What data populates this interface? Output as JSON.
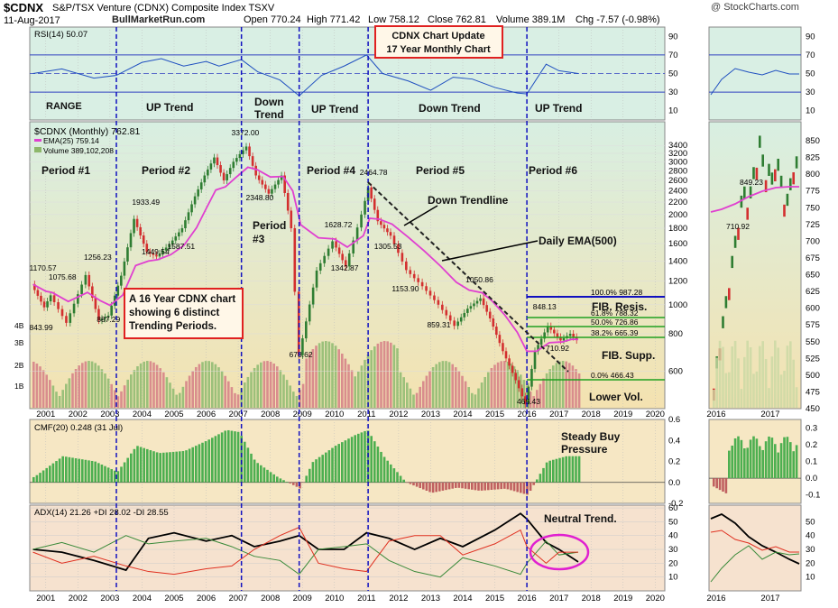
{
  "header": {
    "symbol": "$CDNX",
    "name": "S&P/TSX Venture (CDNX) Composite Index  TSXV",
    "date": "11-Aug-2017",
    "site": "BullMarketRun.com",
    "open": "Open 770.24",
    "high": "High 771.42",
    "low": "Low 758.12",
    "close": "Close 762.81",
    "volume": "Volume 389.1M",
    "chg": "Chg -7.57 (-0.98%)",
    "watermark": "@ StockCharts.com"
  },
  "callouts": {
    "top_box": [
      "CDNX Chart Update",
      "17 Year Monthly Chart"
    ],
    "mid_box": [
      "A 16 Year CDNX chart",
      "showing 6 distinct",
      "Trending Periods."
    ]
  },
  "annotations": {
    "range": "RANGE",
    "trends": [
      "UP Trend",
      "Down",
      "Trend",
      "UP Trend",
      "Down Trend",
      "UP Trend"
    ],
    "periods": [
      "Period #1",
      "Period #2",
      "Period",
      "#3",
      "Period #4",
      "Period #5",
      "Period #6"
    ],
    "down_trendline": "Down Trendline",
    "daily_ema": "Daily EMA(500)",
    "fib_resis": "FIB. Resis.",
    "fib_supp": "FIB. Supp.",
    "lower_vol": "Lower Vol.",
    "steady_buy": [
      "Steady Buy",
      "Pressure"
    ],
    "neutral": "Neutral Trend."
  },
  "colors": {
    "price_up": "#2e7d32",
    "price_down": "#d32f2f",
    "ema": "#e040d0",
    "indicator_bg": "#f6e7c4",
    "rsi_bg": "#dff0e6",
    "trend_line": "#1010c0",
    "callout": "#e02020"
  },
  "chart_data": [
    {
      "type": "line",
      "panel": "RSI",
      "title": "RSI(14) 50.07",
      "ylim": [
        0,
        100
      ],
      "ticks": [
        "90",
        "70",
        "50",
        "30",
        "10"
      ],
      "x": [
        2000.6,
        2001.5,
        2002.5,
        2003.2,
        2004.0,
        2004.6,
        2005.3,
        2006.0,
        2006.4,
        2007.1,
        2007.6,
        2008.3,
        2008.9,
        2009.6,
        2010.3,
        2011.0,
        2011.5,
        2012.3,
        2013.0,
        2013.7,
        2014.3,
        2015.0,
        2015.7,
        2016.0,
        2016.6,
        2017.0,
        2017.6
      ],
      "values": [
        50,
        55,
        45,
        48,
        62,
        66,
        58,
        63,
        58,
        65,
        52,
        43,
        26,
        48,
        58,
        70,
        50,
        42,
        32,
        46,
        44,
        35,
        29,
        28,
        60,
        53,
        50
      ]
    },
    {
      "type": "line",
      "panel": "price",
      "title": "$CDNX (Monthly) 762.81",
      "scale": "log",
      "legend": [
        "EMA(25) 759.14",
        "Volume 389,102,208"
      ],
      "ylim": [
        450,
        3600
      ],
      "ticks": [
        "3400",
        "3200",
        "3000",
        "2800",
        "2600",
        "2400",
        "2200",
        "2000",
        "1800",
        "1600",
        "1400",
        "1200",
        "1000",
        "800",
        "600"
      ],
      "vol_ticks": [
        "4B",
        "3B",
        "2B",
        "1B"
      ],
      "fib_levels": [
        {
          "label": "100.0% 987.28",
          "value": 987.28
        },
        {
          "label": "61.8% 788.32",
          "value": 788.32
        },
        {
          "label": "50.0% 726.86",
          "value": 726.86
        },
        {
          "label": "38.2% 665.39",
          "value": 665.39
        },
        {
          "label": "0.0% 466.43",
          "value": 466.43
        }
      ],
      "x": [
        2000.6,
        2001.0,
        2001.2,
        2001.7,
        2002.3,
        2002.7,
        2003.0,
        2003.4,
        2003.8,
        2004.2,
        2004.5,
        2004.9,
        2005.3,
        2005.7,
        2006.0,
        2006.3,
        2006.6,
        2006.9,
        2007.3,
        2007.6,
        2008.0,
        2008.4,
        2008.7,
        2008.95,
        2009.5,
        2010.0,
        2010.4,
        2010.9,
        2011.1,
        2011.4,
        2011.8,
        2012.3,
        2012.8,
        2013.3,
        2013.8,
        2014.2,
        2014.6,
        2014.9,
        2015.3,
        2015.7,
        2016.0,
        2016.3,
        2016.7,
        2017.1,
        2017.4,
        2017.6
      ],
      "values": [
        1170,
        980,
        1075,
        870,
        1256,
        887,
        920,
        1250,
        1933,
        1500,
        1449,
        1587,
        1800,
        2300,
        2700,
        3100,
        2600,
        3000,
        3372,
        2700,
        2348,
        2700,
        1800,
        678,
        1300,
        1628,
        1342,
        2000,
        2464,
        1900,
        1700,
        1305,
        1153,
        1000,
        850,
        970,
        1050,
        900,
        700,
        560,
        465,
        700,
        848,
        760,
        800,
        762
      ]
    },
    {
      "type": "bar",
      "panel": "CMF",
      "title": "CMF(20) 0.248 (31 Jul)",
      "ylim": [
        -0.2,
        0.6
      ],
      "ticks": [
        "0.6",
        "0.4",
        "0.2",
        "0.0",
        "-0.2"
      ],
      "x": [
        2000.6,
        2001.5,
        2002.5,
        2003.2,
        2003.8,
        2004.5,
        2005.3,
        2006.0,
        2006.6,
        2007.0,
        2007.5,
        2008.2,
        2008.9,
        2009.3,
        2010.0,
        2010.6,
        2011.0,
        2011.5,
        2012.2,
        2013.0,
        2013.8,
        2014.5,
        2015.3,
        2016.0,
        2016.6,
        2017.2,
        2017.6
      ],
      "values": [
        0.05,
        0.25,
        0.2,
        0.1,
        0.35,
        0.28,
        0.3,
        0.4,
        0.5,
        0.48,
        0.2,
        0.05,
        -0.06,
        0.2,
        0.35,
        0.45,
        0.5,
        0.25,
        0.0,
        -0.1,
        -0.05,
        -0.08,
        -0.06,
        -0.12,
        0.2,
        0.25,
        0.25
      ]
    },
    {
      "type": "line",
      "panel": "ADX",
      "title": "ADX(14) 21.26 +DI 28.02 -DI 28.55",
      "ylim": [
        0,
        60
      ],
      "ticks": [
        "60",
        "50",
        "40",
        "30",
        "20",
        "10"
      ],
      "x": [
        2000.6,
        2001.5,
        2002.5,
        2003.5,
        2004.2,
        2005.0,
        2006.0,
        2006.8,
        2007.5,
        2008.3,
        2008.9,
        2009.5,
        2010.3,
        2011.0,
        2011.7,
        2012.5,
        2013.3,
        2014.0,
        2015.0,
        2015.8,
        2016.0,
        2016.6,
        2017.0,
        2017.6
      ],
      "series": [
        {
          "name": "ADX(14)",
          "values": [
            30,
            28,
            22,
            15,
            38,
            42,
            36,
            40,
            32,
            36,
            40,
            30,
            30,
            42,
            38,
            30,
            38,
            32,
            44,
            56,
            52,
            35,
            30,
            21
          ]
        },
        {
          "name": "+DI",
          "values": [
            30,
            35,
            28,
            40,
            34,
            36,
            38,
            32,
            25,
            22,
            12,
            30,
            32,
            34,
            22,
            14,
            10,
            24,
            18,
            12,
            20,
            36,
            26,
            28
          ]
        },
        {
          "name": "-DI",
          "values": [
            28,
            20,
            25,
            18,
            14,
            12,
            16,
            18,
            30,
            40,
            46,
            20,
            16,
            14,
            36,
            40,
            40,
            26,
            34,
            44,
            32,
            20,
            28,
            28
          ]
        }
      ]
    }
  ],
  "xaxis": {
    "years": [
      "2001",
      "2002",
      "2003",
      "2004",
      "2005",
      "2006",
      "2007",
      "2008",
      "2009",
      "2010",
      "2011",
      "2012",
      "2013",
      "2014",
      "2015",
      "2016",
      "2017",
      "2018",
      "2019",
      "2020"
    ],
    "right_years": [
      "2016",
      "2017"
    ]
  },
  "right_panel": {
    "rsi_ticks": [
      "90",
      "70",
      "50",
      "30",
      "10"
    ],
    "price_ticks": [
      "850",
      "825",
      "800",
      "775",
      "750",
      "725",
      "700",
      "675",
      "650",
      "625",
      "600",
      "575",
      "550",
      "525",
      "500",
      "475",
      "450"
    ],
    "price_labels": [
      "849.23",
      "710.92"
    ],
    "cmf_ticks": [
      "0.3",
      "0.2",
      "0.1",
      "0.0",
      "-0.1"
    ],
    "adx_ticks": [
      "50",
      "40",
      "30",
      "20",
      "10"
    ]
  },
  "price_labels": [
    "1170.57",
    "1075.68",
    "843.99",
    "1256.23",
    "887.29",
    "1933.49",
    "1449.54",
    "1587.51",
    "3372.00",
    "2348.80",
    "678.62",
    "1628.72",
    "1342.87",
    "2464.78",
    "1305.53",
    "1153.90",
    "859.31",
    "1050.86",
    "848.13",
    "710.92",
    "465.43"
  ]
}
